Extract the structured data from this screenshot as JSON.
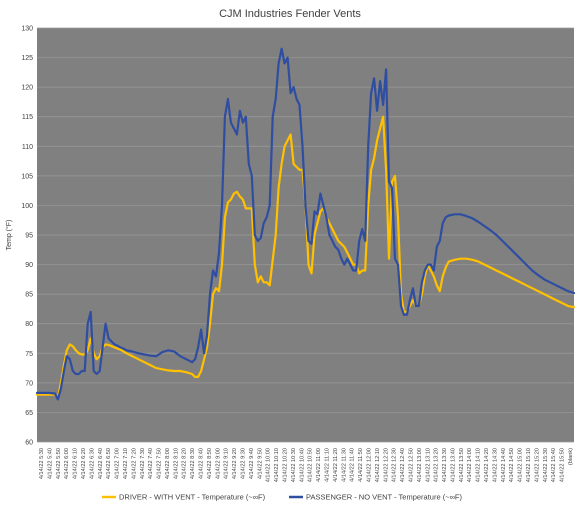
{
  "chart_data": {
    "type": "line",
    "title": "CJM Industries Fender Vents",
    "ylabel": "Temp (°F)",
    "xlabel": "",
    "ylim": [
      60,
      130
    ],
    "yticks": [
      60,
      65,
      70,
      75,
      80,
      85,
      90,
      95,
      100,
      105,
      110,
      115,
      120,
      125,
      130
    ],
    "grid": true,
    "legend_position": "bottom",
    "plot_background": "#808080",
    "x_tick_labels": [
      "4/14/22 5:30",
      "4/14/22 5:40",
      "4/14/22 5:50",
      "4/14/22 6:00",
      "4/14/22 6:10",
      "4/14/22 6:20",
      "4/14/22 6:30",
      "4/14/22 6:40",
      "4/14/22 6:50",
      "4/14/22 7:00",
      "4/14/22 7:10",
      "4/14/22 7:20",
      "4/14/22 7:30",
      "4/14/22 7:40",
      "4/14/22 7:50",
      "4/14/22 8:00",
      "4/14/22 8:10",
      "4/14/22 8:20",
      "4/14/22 8:30",
      "4/14/22 8:40",
      "4/14/22 8:50",
      "4/14/22 9:00",
      "4/14/22 9:10",
      "4/14/22 9:20",
      "4/14/22 9:30",
      "4/14/22 9:40",
      "4/14/22 9:50",
      "4/14/22 10:00",
      "4/14/22 10:10",
      "4/14/22 10:20",
      "4/14/22 10:30",
      "4/14/22 10:40",
      "4/14/22 10:50",
      "4/14/22 11:00",
      "4/14/22 11:10",
      "4/14/22 11:20",
      "4/14/22 11:30",
      "4/14/22 11:40",
      "4/14/22 11:50",
      "4/14/22 12:00",
      "4/14/22 12:10",
      "4/14/22 12:20",
      "4/14/22 12:30",
      "4/14/22 12:40",
      "4/14/22 12:50",
      "4/14/22 13:00",
      "4/14/22 13:10",
      "4/14/22 13:20",
      "4/14/22 13:30",
      "4/14/22 13:40",
      "4/14/22 13:50",
      "4/14/22 14:00",
      "4/14/22 14:10",
      "4/14/22 14:20",
      "4/14/22 14:30",
      "4/14/22 14:40",
      "4/14/22 14:50",
      "4/14/22 15:00",
      "4/14/22 15:10",
      "4/14/22 15:20",
      "4/14/22 15:30",
      "4/14/22 15:40",
      "4/14/22 15:50",
      "(blank)"
    ],
    "series": [
      {
        "name": "DRIVER - WITH VENT - Temperature (~∞F)",
        "color": "#ffc000",
        "points": [
          [
            0,
            68.0
          ],
          [
            2,
            68.0
          ],
          [
            4,
            68.0
          ],
          [
            6,
            68.0
          ],
          [
            7,
            67.5
          ],
          [
            8,
            70
          ],
          [
            9,
            73
          ],
          [
            10,
            75.5
          ],
          [
            11,
            76.5
          ],
          [
            12,
            76.2
          ],
          [
            13,
            75.5
          ],
          [
            14,
            75.0
          ],
          [
            15,
            74.8
          ],
          [
            16,
            74.8
          ],
          [
            17,
            75.5
          ],
          [
            18,
            77.5
          ],
          [
            19,
            75
          ],
          [
            20,
            74
          ],
          [
            21,
            74.5
          ],
          [
            22,
            76
          ],
          [
            23,
            76.5
          ],
          [
            24,
            76.4
          ],
          [
            25,
            76.2
          ],
          [
            26,
            76
          ],
          [
            27,
            75.8
          ],
          [
            28,
            75.6
          ],
          [
            29,
            75.3
          ],
          [
            30,
            75
          ],
          [
            32,
            74.5
          ],
          [
            34,
            74
          ],
          [
            36,
            73.5
          ],
          [
            38,
            73
          ],
          [
            40,
            72.5
          ],
          [
            42,
            72.3
          ],
          [
            44,
            72.1
          ],
          [
            46,
            72
          ],
          [
            48,
            72
          ],
          [
            50,
            71.8
          ],
          [
            52,
            71.5
          ],
          [
            53,
            71
          ],
          [
            54,
            71
          ],
          [
            55,
            72
          ],
          [
            56,
            74
          ],
          [
            57,
            76
          ],
          [
            58,
            80
          ],
          [
            59,
            85
          ],
          [
            60,
            86
          ],
          [
            61,
            85.5
          ],
          [
            62,
            90
          ],
          [
            63,
            98
          ],
          [
            64,
            100.5
          ],
          [
            65,
            101
          ],
          [
            66,
            102
          ],
          [
            67,
            102.3
          ],
          [
            68,
            101.5
          ],
          [
            69,
            101
          ],
          [
            70,
            99.5
          ],
          [
            71,
            99.5
          ],
          [
            72,
            99.5
          ],
          [
            73,
            90
          ],
          [
            74,
            87
          ],
          [
            75,
            88
          ],
          [
            76,
            87
          ],
          [
            77,
            87
          ],
          [
            78,
            86.5
          ],
          [
            80,
            95
          ],
          [
            81,
            103
          ],
          [
            82,
            107
          ],
          [
            83,
            110
          ],
          [
            84,
            111
          ],
          [
            85,
            112
          ],
          [
            86,
            107
          ],
          [
            87,
            106.5
          ],
          [
            88,
            106
          ],
          [
            89,
            106
          ],
          [
            90,
            100
          ],
          [
            91,
            90
          ],
          [
            92,
            88.5
          ],
          [
            93,
            95
          ],
          [
            94,
            97
          ],
          [
            95,
            99
          ],
          [
            96,
            99.5
          ],
          [
            97,
            98
          ],
          [
            98,
            97
          ],
          [
            99,
            96
          ],
          [
            100,
            95
          ],
          [
            101,
            94
          ],
          [
            102,
            93.5
          ],
          [
            103,
            93
          ],
          [
            104,
            92
          ],
          [
            105,
            91
          ],
          [
            106,
            90
          ],
          [
            107,
            90
          ],
          [
            108,
            88.5
          ],
          [
            109,
            89
          ],
          [
            110,
            89
          ],
          [
            111,
            100
          ],
          [
            112,
            106
          ],
          [
            113,
            108
          ],
          [
            114,
            111
          ],
          [
            115,
            113
          ],
          [
            116,
            115
          ],
          [
            117,
            106
          ],
          [
            118,
            91
          ],
          [
            119,
            104
          ],
          [
            120,
            105
          ],
          [
            121,
            98
          ],
          [
            122,
            85
          ],
          [
            123,
            82
          ],
          [
            124,
            82
          ],
          [
            125,
            83
          ],
          [
            126,
            84
          ],
          [
            127,
            83
          ],
          [
            128,
            83
          ],
          [
            129,
            85
          ],
          [
            130,
            88
          ],
          [
            131,
            90
          ],
          [
            132,
            89
          ],
          [
            133,
            88
          ],
          [
            134,
            86.5
          ],
          [
            135,
            85.5
          ],
          [
            136,
            88
          ],
          [
            137,
            89.5
          ],
          [
            138,
            90.5
          ],
          [
            140,
            90.8
          ],
          [
            142,
            91
          ],
          [
            144,
            91
          ],
          [
            146,
            90.8
          ],
          [
            148,
            90.5
          ],
          [
            150,
            90
          ],
          [
            152,
            89.5
          ],
          [
            154,
            89
          ],
          [
            156,
            88.5
          ],
          [
            158,
            88
          ],
          [
            160,
            87.5
          ],
          [
            162,
            87
          ],
          [
            164,
            86.5
          ],
          [
            166,
            86
          ],
          [
            168,
            85.5
          ],
          [
            170,
            85
          ],
          [
            172,
            84.5
          ],
          [
            174,
            84
          ],
          [
            176,
            83.5
          ],
          [
            178,
            83
          ],
          [
            180,
            82.8
          ]
        ]
      },
      {
        "name": "PASSENGER - NO VENT - Temperature (~∞F)",
        "color": "#2f4ea1",
        "points": [
          [
            0,
            68.3
          ],
          [
            2,
            68.3
          ],
          [
            4,
            68.3
          ],
          [
            6,
            68.2
          ],
          [
            7,
            67.2
          ],
          [
            8,
            69
          ],
          [
            9,
            72
          ],
          [
            10,
            74.5
          ],
          [
            11,
            74
          ],
          [
            12,
            72
          ],
          [
            13,
            71.5
          ],
          [
            14,
            71.5
          ],
          [
            15,
            72
          ],
          [
            16,
            72
          ],
          [
            17,
            80
          ],
          [
            18,
            82
          ],
          [
            19,
            72
          ],
          [
            20,
            71.5
          ],
          [
            21,
            72
          ],
          [
            22,
            76
          ],
          [
            23,
            80
          ],
          [
            24,
            77.5
          ],
          [
            25,
            77
          ],
          [
            26,
            76.5
          ],
          [
            27,
            76.3
          ],
          [
            28,
            76
          ],
          [
            29,
            75.8
          ],
          [
            30,
            75.5
          ],
          [
            32,
            75.3
          ],
          [
            34,
            75
          ],
          [
            36,
            74.8
          ],
          [
            38,
            74.6
          ],
          [
            40,
            74.5
          ],
          [
            42,
            75.2
          ],
          [
            44,
            75.5
          ],
          [
            46,
            75.3
          ],
          [
            48,
            74.5
          ],
          [
            50,
            74
          ],
          [
            52,
            73.5
          ],
          [
            53,
            74
          ],
          [
            54,
            76
          ],
          [
            55,
            79
          ],
          [
            56,
            75
          ],
          [
            57,
            78
          ],
          [
            58,
            85
          ],
          [
            59,
            89
          ],
          [
            60,
            88
          ],
          [
            61,
            92
          ],
          [
            62,
            100
          ],
          [
            63,
            115
          ],
          [
            64,
            118
          ],
          [
            65,
            114
          ],
          [
            66,
            113
          ],
          [
            67,
            112
          ],
          [
            68,
            116
          ],
          [
            69,
            114
          ],
          [
            70,
            115
          ],
          [
            71,
            107
          ],
          [
            72,
            105
          ],
          [
            73,
            95
          ],
          [
            74,
            94
          ],
          [
            75,
            94.5
          ],
          [
            76,
            97
          ],
          [
            77,
            98
          ],
          [
            78,
            100
          ],
          [
            79,
            115
          ],
          [
            80,
            118
          ],
          [
            81,
            124
          ],
          [
            82,
            126.5
          ],
          [
            83,
            124
          ],
          [
            84,
            125
          ],
          [
            85,
            119
          ],
          [
            86,
            120
          ],
          [
            87,
            118
          ],
          [
            88,
            117
          ],
          [
            89,
            110
          ],
          [
            90,
            100
          ],
          [
            91,
            94
          ],
          [
            92,
            93.5
          ],
          [
            93,
            99
          ],
          [
            94,
            98.5
          ],
          [
            95,
            102
          ],
          [
            96,
            100
          ],
          [
            97,
            98
          ],
          [
            98,
            95
          ],
          [
            99,
            94
          ],
          [
            100,
            93
          ],
          [
            101,
            92.5
          ],
          [
            102,
            91
          ],
          [
            103,
            90
          ],
          [
            104,
            91
          ],
          [
            105,
            90
          ],
          [
            106,
            89
          ],
          [
            107,
            89
          ],
          [
            108,
            94
          ],
          [
            109,
            96
          ],
          [
            110,
            94
          ],
          [
            111,
            110
          ],
          [
            112,
            119
          ],
          [
            113,
            121.5
          ],
          [
            114,
            116
          ],
          [
            115,
            121
          ],
          [
            116,
            117
          ],
          [
            117,
            123
          ],
          [
            118,
            104
          ],
          [
            119,
            103
          ],
          [
            120,
            91
          ],
          [
            121,
            90
          ],
          [
            122,
            83
          ],
          [
            123,
            81.5
          ],
          [
            124,
            81.5
          ],
          [
            125,
            84
          ],
          [
            126,
            86
          ],
          [
            127,
            83
          ],
          [
            128,
            83
          ],
          [
            129,
            87
          ],
          [
            130,
            89
          ],
          [
            131,
            90
          ],
          [
            132,
            90
          ],
          [
            133,
            89
          ],
          [
            134,
            93
          ],
          [
            135,
            94
          ],
          [
            136,
            97
          ],
          [
            137,
            98
          ],
          [
            138,
            98.3
          ],
          [
            140,
            98.5
          ],
          [
            142,
            98.5
          ],
          [
            144,
            98.2
          ],
          [
            146,
            97.8
          ],
          [
            148,
            97.2
          ],
          [
            150,
            96.5
          ],
          [
            152,
            95.8
          ],
          [
            154,
            95
          ],
          [
            156,
            94
          ],
          [
            158,
            93
          ],
          [
            160,
            92
          ],
          [
            162,
            91
          ],
          [
            164,
            90
          ],
          [
            166,
            89
          ],
          [
            168,
            88.2
          ],
          [
            170,
            87.5
          ],
          [
            172,
            87
          ],
          [
            174,
            86.5
          ],
          [
            176,
            86
          ],
          [
            178,
            85.5
          ],
          [
            180,
            85.2
          ]
        ]
      }
    ]
  }
}
